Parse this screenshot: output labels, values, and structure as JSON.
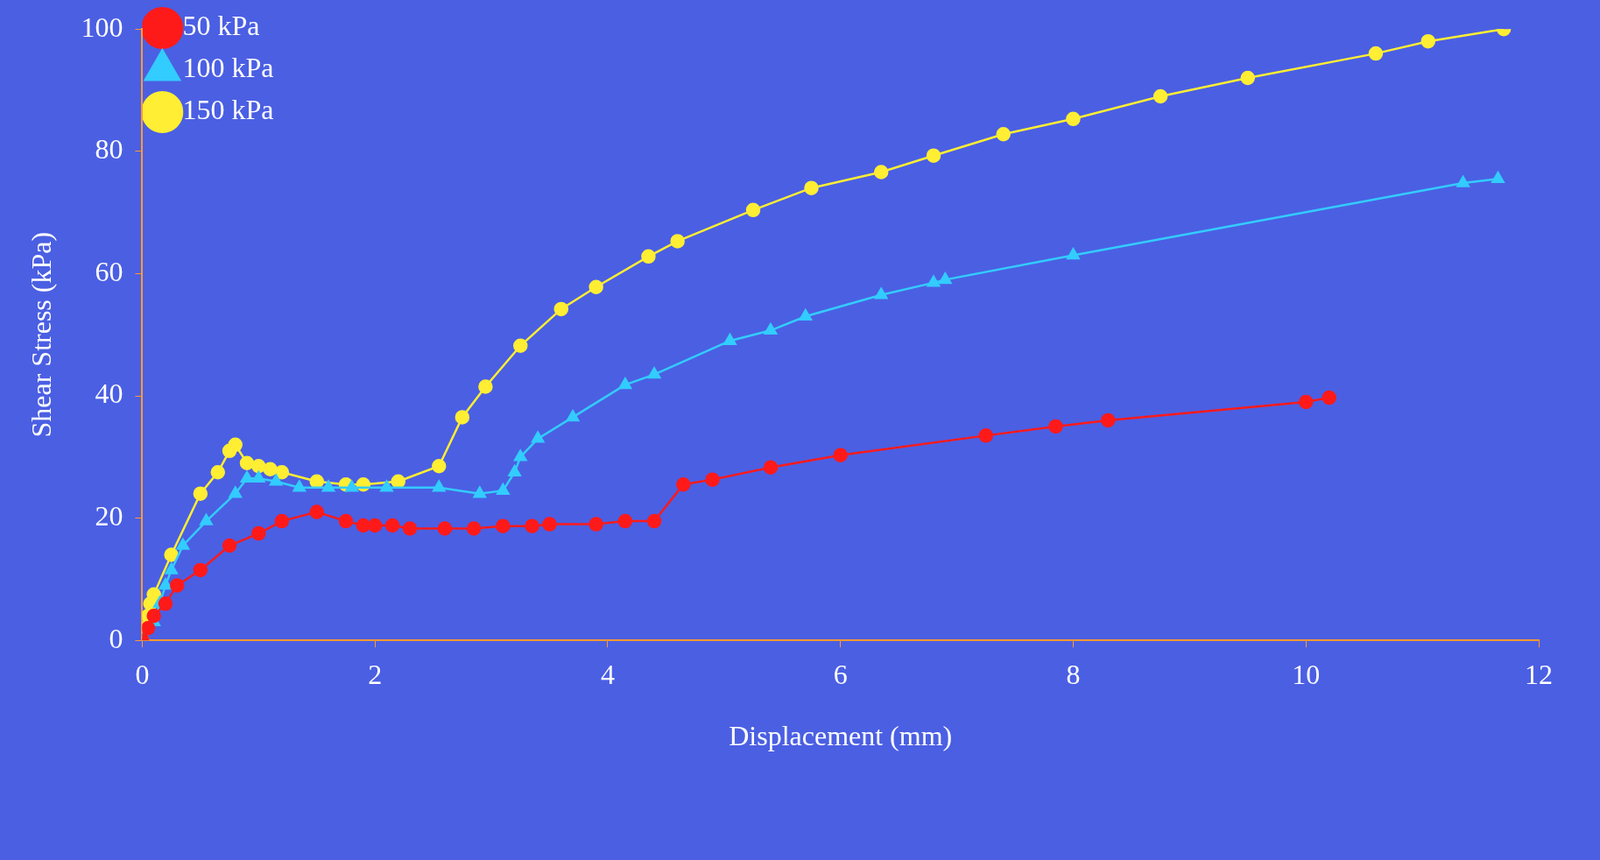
{
  "chart_data": {
    "type": "line",
    "x_label": "Displacement (mm)",
    "y_label": "Shear Stress (kPa)",
    "xlim": [
      0,
      12
    ],
    "xticks": [
      0,
      2,
      4,
      6,
      8,
      10,
      12
    ],
    "ylim": [
      0,
      100
    ],
    "yticks": [
      0,
      20,
      40,
      60,
      80,
      100
    ],
    "grid": false,
    "legend": "upper left",
    "series": [
      {
        "name": "50 kPa",
        "color": "#ff1a1a",
        "marker": "circle",
        "x": [
          0,
          0.05,
          0.1,
          0.2,
          0.3,
          0.5,
          0.75,
          1.0,
          1.2,
          1.5,
          1.75,
          1.9,
          2.0,
          2.15,
          2.3,
          2.6,
          2.85,
          3.1,
          3.35,
          3.5,
          3.9,
          4.15,
          4.4,
          4.65,
          4.9,
          5.4,
          6.0,
          7.25,
          7.85,
          8.3,
          10.0,
          10.2
        ],
        "values": [
          0,
          2,
          4,
          6,
          9,
          11.5,
          15.5,
          17.5,
          19.5,
          21,
          19.5,
          18.8,
          18.8,
          18.8,
          18.3,
          18.3,
          18.3,
          18.7,
          18.7,
          19,
          19,
          19.5,
          19.5,
          25.5,
          26.3,
          28.3,
          30.3,
          33.5,
          35,
          36,
          39,
          39.7
        ]
      },
      {
        "name": "100 kPa",
        "color": "#33ccff",
        "marker": "triangle",
        "x": [
          0,
          0.1,
          0.15,
          0.2,
          0.25,
          0.35,
          0.55,
          0.8,
          0.9,
          1.0,
          1.15,
          1.35,
          1.6,
          1.8,
          2.1,
          2.55,
          2.9,
          3.1,
          3.2,
          3.25,
          3.4,
          3.7,
          4.15,
          4.4,
          5.05,
          5.4,
          5.7,
          6.35,
          6.8,
          6.9,
          8.0,
          11.35,
          11.65
        ],
        "values": [
          0,
          3,
          6,
          9,
          11.5,
          15.5,
          19.5,
          24,
          26.5,
          26.5,
          26,
          25,
          25,
          25,
          25,
          25,
          24,
          24.5,
          27.5,
          30,
          33,
          36.5,
          41.8,
          43.5,
          49,
          50.7,
          53,
          56.5,
          58.5,
          59,
          63,
          74.8,
          75.5
        ]
      },
      {
        "name": "150 kPa",
        "color": "#ffee33",
        "marker": "circle",
        "x": [
          0,
          0.02,
          0.05,
          0.07,
          0.1,
          0.25,
          0.5,
          0.65,
          0.75,
          0.8,
          0.9,
          1.0,
          1.1,
          1.2,
          1.5,
          1.75,
          1.9,
          2.2,
          2.55,
          2.75,
          2.95,
          3.25,
          3.6,
          3.9,
          4.35,
          4.6,
          5.25,
          5.75,
          6.35,
          6.8,
          7.4,
          8.0,
          8.75,
          9.5,
          10.6,
          11.05,
          11.7
        ],
        "values": [
          0,
          2,
          4,
          6,
          7.5,
          14,
          24,
          27.5,
          31,
          32,
          29,
          28.5,
          28,
          27.5,
          26,
          25.5,
          25.5,
          26,
          28.5,
          36.5,
          41.5,
          48.2,
          54.2,
          57.8,
          62.8,
          65.3,
          70.4,
          74,
          76.6,
          79.3,
          82.8,
          85.3,
          89,
          92,
          96,
          98,
          100
        ]
      }
    ]
  }
}
